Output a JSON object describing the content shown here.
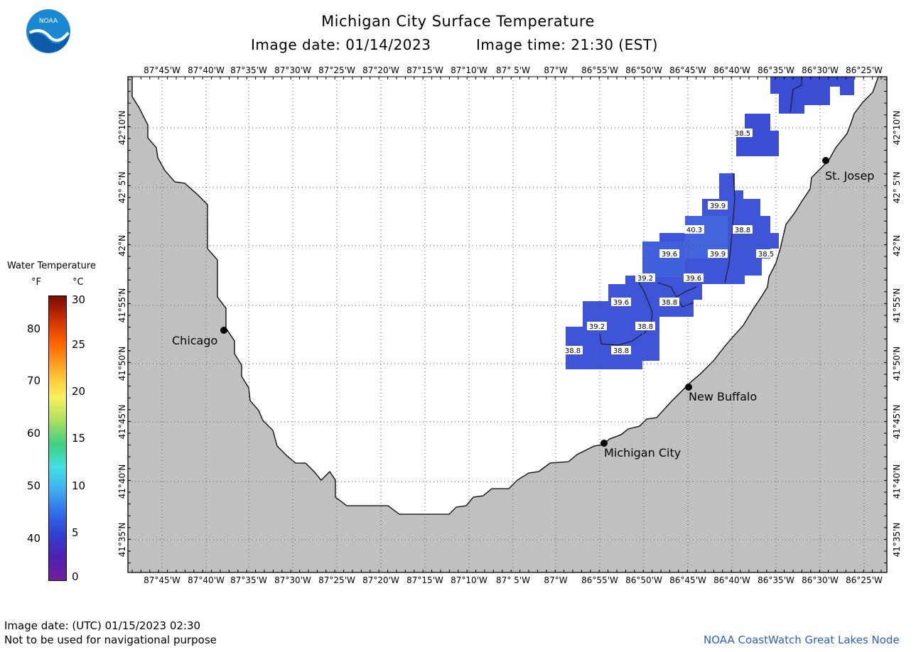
{
  "title": "Michigan City Surface Temperature",
  "image_date": "Image date: 01/14/2023",
  "image_time": "Image time: 21:30 (EST)",
  "utc_date": "Image date: (UTC) 01/15/2023  02:30",
  "disclaimer": "Not to be used for navigational purpose",
  "credit": "NOAA CoastWatch Great Lakes Node",
  "logo_text": "NOAA",
  "longitude_labels": [
    "87°45'W",
    "87°40'W",
    "87°35'W",
    "87°30'W",
    "87°25'W",
    "87°20'W",
    "87°15'W",
    "87°10'W",
    "87° 5'W",
    "87°W",
    "86°55'W",
    "86°50'W",
    "86°45'W",
    "86°40'W",
    "86°35'W",
    "86°30'W",
    "86°25'W"
  ],
  "latitude_labels": [
    "42°10'N",
    "42° 5'N",
    "42°N",
    "41°55'N",
    "41°50'N",
    "41°45'N",
    "41°40'N",
    "41°35'N"
  ],
  "cities": [
    {
      "name": "Chicago"
    },
    {
      "name": "St. Josep"
    },
    {
      "name": "New Buffalo"
    },
    {
      "name": "Michigan City"
    }
  ],
  "legend": {
    "title": "Water Temperature",
    "unit_f": "°F",
    "unit_c": "°C",
    "fahrenheit_ticks": [
      "80",
      "70",
      "60",
      "50",
      "40"
    ],
    "celsius_ticks": [
      "30",
      "25",
      "20",
      "15",
      "10",
      "5",
      "0"
    ]
  },
  "temperature_labels": [
    "38.5",
    "39.9",
    "40.3",
    "38.8",
    "39.6",
    "39.9",
    "38.5",
    "39.2",
    "39.6",
    "39.6",
    "38.8",
    "39.2",
    "38.8",
    "38.8",
    "38.8"
  ],
  "colors": {
    "land": "#c0c0c0",
    "water": "#ffffff",
    "sst_fill": "#3b4fd6",
    "sst_fill_light": "#4060dc",
    "credit": "#2a62b9"
  }
}
